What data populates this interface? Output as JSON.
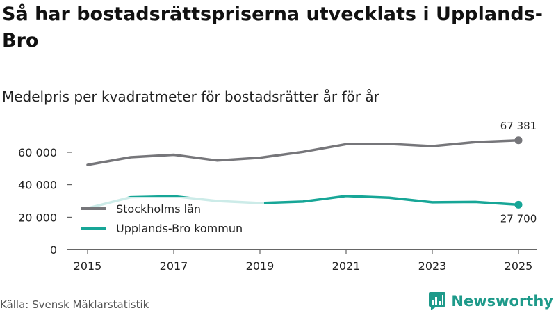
{
  "title": "Så har bostadsrättspriserna utvecklats i Upplands-Bro",
  "subtitle": "Medelpris per kvadratmeter för bostadsrätter år för år",
  "source": "Källa: Svensk Mäklarstatistik",
  "brand": {
    "name": "Newsworthy",
    "icon": "newsworthy-logo-icon"
  },
  "colors": {
    "stockholm": "#76767a",
    "upplands": "#17a697",
    "axis": "#333333"
  },
  "chart_data": {
    "type": "line",
    "x": [
      2015,
      2016,
      2017,
      2018,
      2019,
      2020,
      2021,
      2022,
      2023,
      2024,
      2025
    ],
    "xticks": [
      2015,
      2017,
      2019,
      2021,
      2023,
      2025
    ],
    "xtick_labels": [
      "2015",
      "2017",
      "2019",
      "2021",
      "2023",
      "2025"
    ],
    "xlim": [
      2014.8,
      2025.2
    ],
    "ylim": [
      0,
      70000
    ],
    "yticks": [
      0,
      20000,
      40000,
      60000
    ],
    "ytick_labels": [
      "0",
      "20 000",
      "40 000",
      "60 000"
    ],
    "grid": false,
    "legend_position": "lower-left",
    "series": [
      {
        "name": "Stockholms län",
        "color": "#76767a",
        "values": [
          52300,
          57000,
          58500,
          55000,
          56700,
          60300,
          65000,
          65200,
          63800,
          66300,
          67381
        ],
        "end_label": "67 381"
      },
      {
        "name": "Upplands-Bro kommun",
        "color": "#17a697",
        "values": [
          25500,
          32300,
          32900,
          30000,
          28700,
          29600,
          33100,
          32000,
          29200,
          29400,
          27700
        ],
        "end_label": "27 700"
      }
    ]
  }
}
